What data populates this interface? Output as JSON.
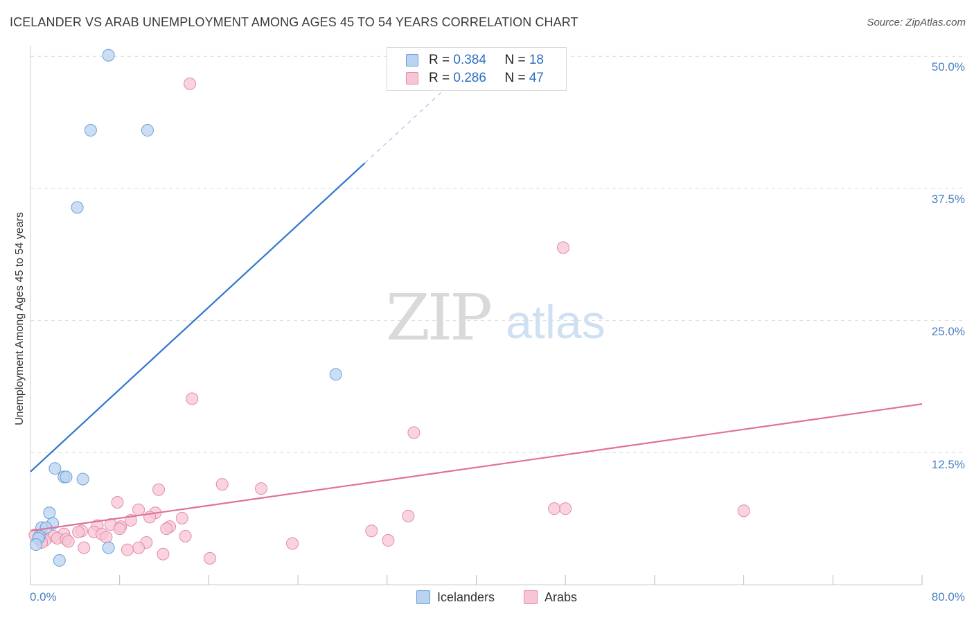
{
  "title": "ICELANDER VS ARAB UNEMPLOYMENT AMONG AGES 45 TO 54 YEARS CORRELATION CHART",
  "source": "Source: ZipAtlas.com",
  "watermark": {
    "zip": "ZIP",
    "atlas": "atlas"
  },
  "colors": {
    "blue_fill": "#b9d3f0",
    "blue_stroke": "#6a9fd8",
    "blue_line": "#2f74d0",
    "pink_fill": "#f7c5d5",
    "pink_stroke": "#e58aa8",
    "pink_line": "#e0709a",
    "grid": "#d9d9d9",
    "axis_label": "#4a7fc1"
  },
  "legend_top": {
    "rows": [
      {
        "r_label": "R = ",
        "r_value": "0.384",
        "n_label": "N = ",
        "n_value": "18",
        "color": "blue"
      },
      {
        "r_label": "R = ",
        "r_value": "0.286",
        "n_label": "N = ",
        "n_value": "47",
        "color": "pink"
      }
    ]
  },
  "legend_bottom": {
    "icelanders": "Icelanders",
    "arabs": "Arabs"
  },
  "chart_data": {
    "type": "scatter",
    "title": "ICELANDER VS ARAB UNEMPLOYMENT AMONG AGES 45 TO 54 YEARS CORRELATION CHART",
    "xlabel": "",
    "ylabel": "Unemployment Among Ages 45 to 54 years",
    "xlim": [
      0,
      80
    ],
    "ylim": [
      0,
      51
    ],
    "x_tick_labels": [
      "0.0%",
      "80.0%"
    ],
    "y_ticks": [
      12.5,
      25.0,
      37.5,
      50.0
    ],
    "y_tick_labels": [
      "12.5%",
      "25.0%",
      "37.5%",
      "50.0%"
    ],
    "grid": true,
    "series": [
      {
        "name": "Icelanders",
        "color": "blue",
        "points": [
          [
            7.0,
            50.1
          ],
          [
            5.4,
            43.0
          ],
          [
            10.5,
            43.0
          ],
          [
            4.2,
            35.7
          ],
          [
            27.4,
            19.9
          ],
          [
            2.2,
            11.0
          ],
          [
            3.0,
            10.2
          ],
          [
            3.2,
            10.2
          ],
          [
            4.7,
            10.0
          ],
          [
            1.7,
            6.8
          ],
          [
            2.0,
            5.8
          ],
          [
            1.0,
            5.4
          ],
          [
            1.4,
            5.4
          ],
          [
            0.8,
            4.6
          ],
          [
            0.7,
            4.4
          ],
          [
            0.5,
            3.8
          ],
          [
            7.0,
            3.5
          ],
          [
            2.6,
            2.3
          ]
        ],
        "trend": {
          "x0": 0,
          "y0": 10.7,
          "x1": 30,
          "y1": 39.9,
          "dashed_to_x": 38,
          "dashed_to_y": 47.7
        }
      },
      {
        "name": "Arabs",
        "color": "pink",
        "points": [
          [
            14.3,
            47.4
          ],
          [
            47.8,
            31.9
          ],
          [
            14.5,
            17.6
          ],
          [
            34.4,
            14.4
          ],
          [
            17.2,
            9.5
          ],
          [
            20.7,
            9.1
          ],
          [
            11.5,
            9.0
          ],
          [
            7.8,
            7.8
          ],
          [
            47.0,
            7.2
          ],
          [
            48.0,
            7.2
          ],
          [
            64.0,
            7.0
          ],
          [
            9.7,
            7.1
          ],
          [
            11.2,
            6.8
          ],
          [
            10.7,
            6.4
          ],
          [
            13.6,
            6.3
          ],
          [
            33.9,
            6.5
          ],
          [
            9.0,
            6.1
          ],
          [
            6.0,
            5.6
          ],
          [
            7.2,
            5.7
          ],
          [
            8.1,
            5.5
          ],
          [
            12.5,
            5.5
          ],
          [
            12.2,
            5.3
          ],
          [
            8.0,
            5.3
          ],
          [
            30.6,
            5.1
          ],
          [
            4.6,
            5.1
          ],
          [
            4.3,
            5.0
          ],
          [
            5.7,
            5.0
          ],
          [
            6.4,
            4.8
          ],
          [
            3.0,
            4.8
          ],
          [
            0.4,
            4.7
          ],
          [
            1.1,
            4.6
          ],
          [
            2.1,
            4.6
          ],
          [
            13.9,
            4.6
          ],
          [
            6.8,
            4.5
          ],
          [
            2.4,
            4.4
          ],
          [
            3.2,
            4.3
          ],
          [
            1.3,
            4.2
          ],
          [
            3.4,
            4.1
          ],
          [
            10.4,
            4.0
          ],
          [
            1.0,
            4.0
          ],
          [
            23.5,
            3.9
          ],
          [
            32.1,
            4.2
          ],
          [
            4.8,
            3.5
          ],
          [
            9.7,
            3.5
          ],
          [
            8.7,
            3.3
          ],
          [
            11.9,
            2.9
          ],
          [
            16.1,
            2.5
          ]
        ],
        "trend": {
          "x0": 0,
          "y0": 5.1,
          "x1": 80,
          "y1": 17.1
        }
      }
    ]
  }
}
